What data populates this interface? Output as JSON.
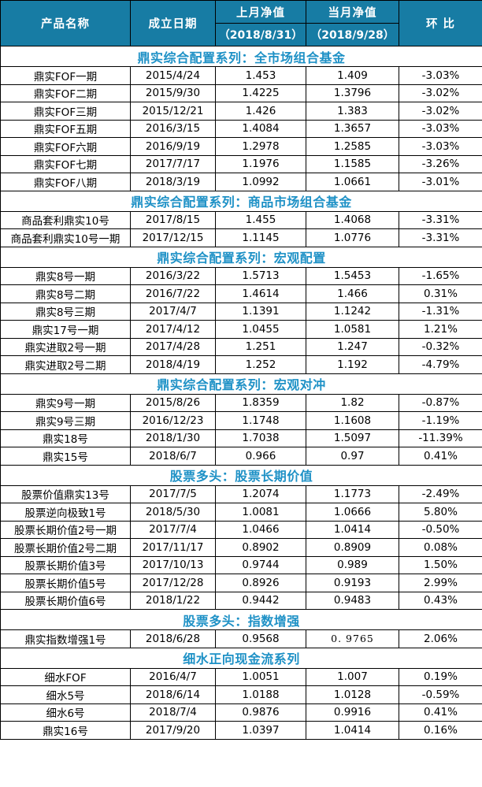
{
  "table": {
    "colors": {
      "header_bg": "#177CA4",
      "section_text": "#1E91C6",
      "border": "#000000"
    },
    "header": {
      "col_product": "产品名称",
      "col_date": "成立日期",
      "col_prev": "上月净值",
      "col_prev_sub": "（2018/8/31）",
      "col_curr": "当月净值",
      "col_curr_sub": "（2018/9/28）",
      "col_mom": "环 比"
    },
    "sections": [
      {
        "title": "鼎实综合配置系列：全市场组合基金",
        "rows": [
          {
            "name": "鼎实FOF一期",
            "date": "2015/4/24",
            "prev": "1.453",
            "curr": "1.409",
            "mom": "-3.03%"
          },
          {
            "name": "鼎实FOF二期",
            "date": "2015/9/30",
            "prev": "1.4225",
            "curr": "1.3796",
            "mom": "-3.02%"
          },
          {
            "name": "鼎实FOF三期",
            "date": "2015/12/21",
            "prev": "1.426",
            "curr": "1.383",
            "mom": "-3.02%"
          },
          {
            "name": "鼎实FOF五期",
            "date": "2016/3/15",
            "prev": "1.4084",
            "curr": "1.3657",
            "mom": "-3.03%"
          },
          {
            "name": "鼎实FOF六期",
            "date": "2016/9/19",
            "prev": "1.2978",
            "curr": "1.2585",
            "mom": "-3.03%"
          },
          {
            "name": "鼎实FOF七期",
            "date": "2017/7/17",
            "prev": "1.1976",
            "curr": "1.1585",
            "mom": "-3.26%"
          },
          {
            "name": "鼎实FOF八期",
            "date": "2018/3/19",
            "prev": "1.0992",
            "curr": "1.0661",
            "mom": "-3.01%"
          }
        ]
      },
      {
        "title": "鼎实综合配置系列：商品市场组合基金",
        "rows": [
          {
            "name": "商品套利鼎实10号",
            "date": "2017/8/15",
            "prev": "1.455",
            "curr": "1.4068",
            "mom": "-3.31%"
          },
          {
            "name": "商品套利鼎实10号一期",
            "date": "2017/12/15",
            "prev": "1.1145",
            "curr": "1.0776",
            "mom": "-3.31%"
          }
        ]
      },
      {
        "title": "鼎实综合配置系列：宏观配置",
        "rows": [
          {
            "name": "鼎实8号一期",
            "date": "2016/3/22",
            "prev": "1.5713",
            "curr": "1.5453",
            "mom": "-1.65%"
          },
          {
            "name": "鼎实8号二期",
            "date": "2016/7/22",
            "prev": "1.4614",
            "curr": "1.466",
            "mom": "0.31%"
          },
          {
            "name": "鼎实8号三期",
            "date": "2017/4/7",
            "prev": "1.1391",
            "curr": "1.1242",
            "mom": "-1.31%"
          },
          {
            "name": "鼎实17号一期",
            "date": "2017/4/12",
            "prev": "1.0455",
            "curr": "1.0581",
            "mom": "1.21%"
          },
          {
            "name": "鼎实进取2号一期",
            "date": "2017/4/28",
            "prev": "1.251",
            "curr": "1.247",
            "mom": "-0.32%"
          },
          {
            "name": "鼎实进取2号二期",
            "date": "2018/4/19",
            "prev": "1.252",
            "curr": "1.192",
            "mom": "-4.79%"
          }
        ]
      },
      {
        "title": "鼎实综合配置系列：宏观对冲",
        "rows": [
          {
            "name": "鼎实9号一期",
            "date": "2015/8/26",
            "prev": "1.8359",
            "curr": "1.82",
            "mom": "-0.87%"
          },
          {
            "name": "鼎实9号三期",
            "date": "2016/12/23",
            "prev": "1.1748",
            "curr": "1.1608",
            "mom": "-1.19%"
          },
          {
            "name": "鼎实18号",
            "date": "2018/1/30",
            "prev": "1.7038",
            "curr": "1.5097",
            "mom": "-11.39%"
          },
          {
            "name": "鼎实15号",
            "date": "2018/6/7",
            "prev": "0.966",
            "curr": "0.97",
            "mom": "0.41%"
          }
        ]
      },
      {
        "title": "股票多头：股票长期价值",
        "rows": [
          {
            "name": "股票价值鼎实13号",
            "date": "2017/7/5",
            "prev": "1.2074",
            "curr": "1.1773",
            "mom": "-2.49%"
          },
          {
            "name": "股票逆向极致1号",
            "date": "2018/5/30",
            "prev": "1.0081",
            "curr": "1.0666",
            "mom": "5.80%"
          },
          {
            "name": "股票长期价值2号一期",
            "date": "2017/7/4",
            "prev": "1.0466",
            "curr": "1.0414",
            "mom": "-0.50%"
          },
          {
            "name": "股票长期价值2号二期",
            "date": "2017/11/17",
            "prev": "0.8902",
            "curr": "0.8909",
            "mom": "0.08%"
          },
          {
            "name": "股票长期价值3号",
            "date": "2017/10/13",
            "prev": "0.9744",
            "curr": "0.989",
            "mom": "1.50%"
          },
          {
            "name": "股票长期价值5号",
            "date": "2017/12/28",
            "prev": "0.8926",
            "curr": "0.9193",
            "mom": "2.99%"
          },
          {
            "name": "股票长期价值6号",
            "date": "2018/1/22",
            "prev": "0.9442",
            "curr": "0.9483",
            "mom": "0.43%"
          }
        ]
      },
      {
        "title": "股票多头：指数增强",
        "rows": [
          {
            "name": "鼎实指数增强1号",
            "date": "2018/6/28",
            "prev": "0.9568",
            "curr": "0. 9765",
            "curr_alt": true,
            "mom": "2.06%"
          }
        ]
      },
      {
        "title": "细水正向现金流系列",
        "rows": [
          {
            "name": "细水FOF",
            "date": "2016/4/7",
            "prev": "1.0051",
            "curr": "1.007",
            "mom": "0.19%"
          },
          {
            "name": "细水5号",
            "date": "2018/6/14",
            "prev": "1.0188",
            "curr": "1.0128",
            "mom": "-0.59%"
          },
          {
            "name": "细水6号",
            "date": "2018/7/4",
            "prev": "0.9876",
            "curr": "0.9916",
            "mom": "0.41%"
          },
          {
            "name": "鼎实16号",
            "date": "2017/9/20",
            "prev": "1.0397",
            "curr": "1.0414",
            "mom": "0.16%"
          }
        ]
      }
    ]
  }
}
